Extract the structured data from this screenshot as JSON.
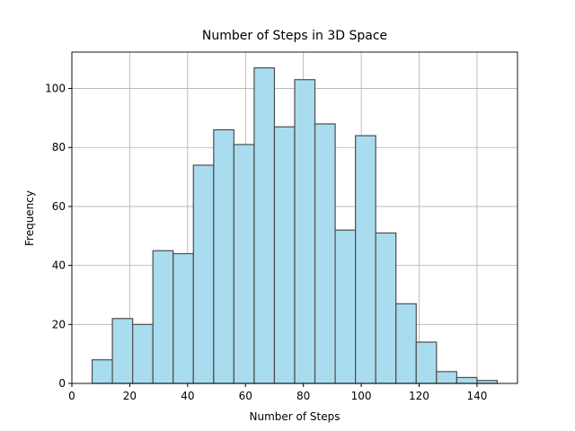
{
  "chart_data": {
    "type": "histogram",
    "title": "Number of Steps in 3D Space",
    "x_label": "Number of Steps",
    "y_label": "Frequency",
    "bins": [
      7,
      14,
      21,
      28,
      35,
      42,
      49,
      56,
      63,
      70,
      77,
      84,
      91,
      98,
      105,
      112,
      119,
      126,
      133,
      140,
      147
    ],
    "counts": [
      8,
      22,
      20,
      45,
      44,
      74,
      86,
      81,
      107,
      87,
      103,
      88,
      52,
      84,
      51,
      27,
      14,
      4,
      2,
      1
    ],
    "color": "#a9dcee",
    "edgecolor": "#4d4d4d",
    "xlim": [
      0,
      154
    ],
    "ylim": [
      0,
      112.35
    ],
    "xticks": [
      0,
      20,
      40,
      60,
      80,
      100,
      120,
      140
    ],
    "yticks": [
      0,
      20,
      40,
      60,
      80,
      100
    ],
    "grid": true
  }
}
